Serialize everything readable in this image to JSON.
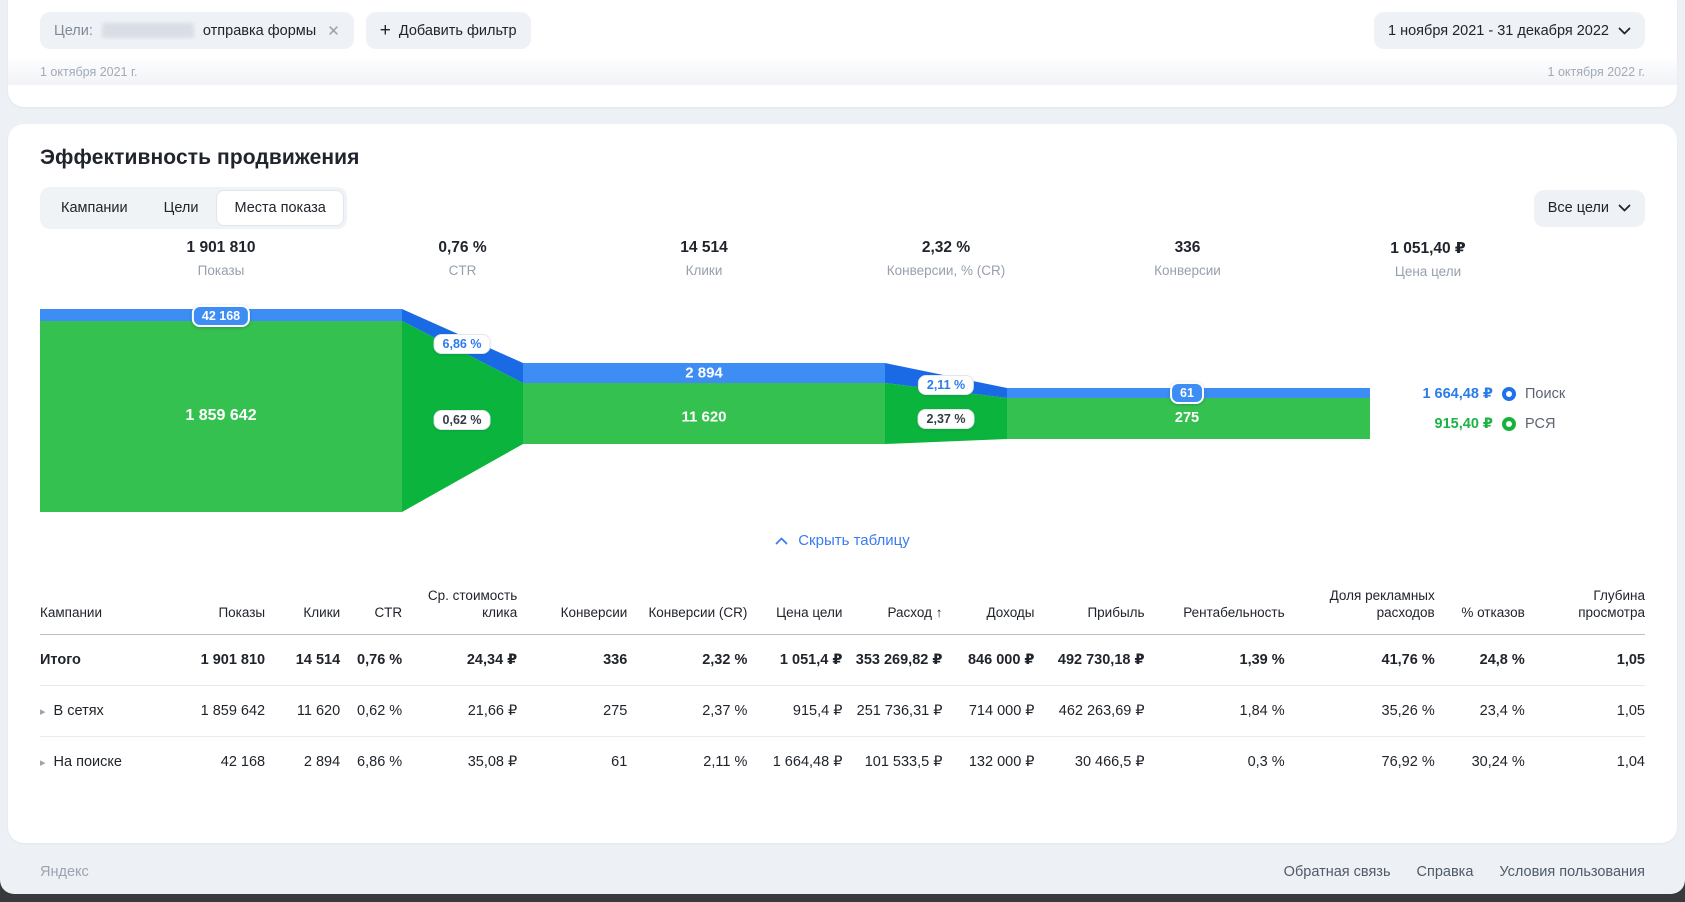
{
  "filter_bar": {
    "goal_filter": {
      "prefix": "Цели:",
      "label": "отправка формы"
    },
    "add_filter_label": "Добавить фильтр",
    "date_range": "1 ноября 2021 - 31 декабря 2022"
  },
  "timeline": {
    "start_date": "1 октября 2021 г.",
    "end_date": "1 октября 2022 г."
  },
  "panel": {
    "title": "Эффективность продвижения",
    "tabs": [
      {
        "label": "Кампании",
        "active": false
      },
      {
        "label": "Цели",
        "active": false
      },
      {
        "label": "Места показа",
        "active": true
      }
    ],
    "goals_dropdown_label": "Все цели",
    "hide_table_label": "Скрыть таблицу"
  },
  "chart_data": {
    "type": "funnel",
    "series_names": [
      "Поиск",
      "РСЯ"
    ],
    "stages": [
      {
        "metric": "Показы",
        "total": "1 901 810",
        "search": "42 168",
        "network": "1 859 642"
      },
      {
        "metric": "CTR",
        "total": "0,76 %",
        "search": "6,86 %",
        "network": "0,62 %"
      },
      {
        "metric": "Клики",
        "total": "14 514",
        "search": "2 894",
        "network": "11 620"
      },
      {
        "metric": "Конверсии, % (CR)",
        "total": "2,32 %",
        "search": "2,11 %",
        "network": "2,37 %"
      },
      {
        "metric": "Конверсии",
        "total": "336",
        "search": "61",
        "network": "275"
      },
      {
        "metric": "Цена цели",
        "total": "1 051,40 ₽",
        "search": "1 664,48 ₽",
        "network": "915,40 ₽"
      }
    ],
    "legend": [
      {
        "label": "Поиск",
        "value": "1 664,48 ₽",
        "color": "#1f72e8"
      },
      {
        "label": "РСЯ",
        "value": "915,40 ₽",
        "color": "#16b33c"
      }
    ],
    "colors": {
      "search_block": "#3d8df4",
      "search_transition": "#1a6ae6",
      "network_block": "#35c150",
      "network_transition": "#0bb43c"
    },
    "layout": {
      "legend_position": "right",
      "orientation": "horizontal"
    }
  },
  "table": {
    "columns": [
      "Кампании",
      "Показы",
      "Клики",
      "CTR",
      "Ср. стоимость клика",
      "Конверсии",
      "Конверсии (CR)",
      "Цена цели",
      "Расход ↑",
      "Доходы",
      "Прибыль",
      "Рентабельность",
      "Доля рекламных расходов",
      "% отказов",
      "Глубина просмотра"
    ],
    "rows": [
      {
        "label": "Итого",
        "emphasis": true,
        "expandable": false,
        "values": [
          "1 901 810",
          "14 514",
          "0,76 %",
          "24,34 ₽",
          "336",
          "2,32 %",
          "1 051,4 ₽",
          "353 269,82 ₽",
          "846 000 ₽",
          "492 730,18 ₽",
          "1,39 %",
          "41,76 %",
          "24,8 %",
          "1,05"
        ]
      },
      {
        "label": "В сетях",
        "emphasis": false,
        "expandable": true,
        "values": [
          "1 859 642",
          "11 620",
          "0,62 %",
          "21,66 ₽",
          "275",
          "2,37 %",
          "915,4 ₽",
          "251 736,31 ₽",
          "714 000 ₽",
          "462 263,69 ₽",
          "1,84 %",
          "35,26 %",
          "23,4 %",
          "1,05"
        ]
      },
      {
        "label": "На поиске",
        "emphasis": false,
        "expandable": true,
        "values": [
          "42 168",
          "2 894",
          "6,86 %",
          "35,08 ₽",
          "61",
          "2,11 %",
          "1 664,48 ₽",
          "101 533,5 ₽",
          "132 000 ₽",
          "30 466,5 ₽",
          "0,3 %",
          "76,92 %",
          "30,24 %",
          "1,04"
        ]
      }
    ]
  },
  "footer": {
    "brand": "Яндекс",
    "links": [
      "Обратная связь",
      "Справка",
      "Условия пользования"
    ]
  },
  "icons": {
    "close": "✕",
    "plus": "+",
    "row_expand": "▸"
  }
}
